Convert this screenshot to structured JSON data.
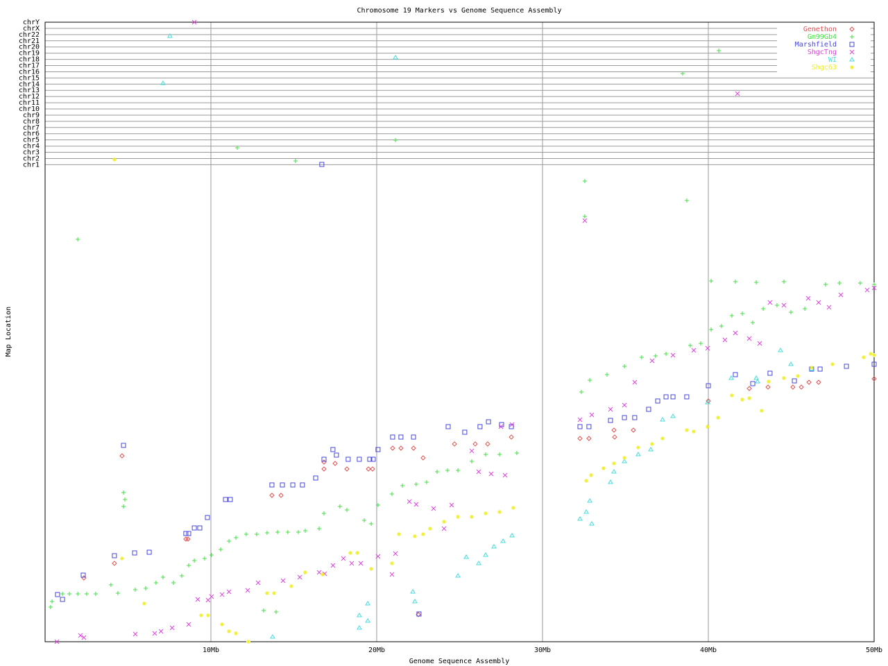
{
  "chart_data": {
    "type": "scatter",
    "title": "Chromosome 19 Markers vs Genome Sequence Assembly",
    "x_label": "Genome Sequence Assembly",
    "y_label": "Map Location",
    "xlim": [
      0,
      50
    ],
    "ylim": [
      0,
      100
    ],
    "xticks": [
      {
        "value": 10,
        "label": "10Mb"
      },
      {
        "value": 20,
        "label": "20Mb"
      },
      {
        "value": 30,
        "label": "30Mb"
      },
      {
        "value": 40,
        "label": "40Mb"
      },
      {
        "value": 50,
        "label": "50Mb"
      }
    ],
    "yticks": [
      {
        "value": 77,
        "label": "chr1"
      },
      {
        "value": 78,
        "label": "chr2"
      },
      {
        "value": 79,
        "label": "chr3"
      },
      {
        "value": 80,
        "label": "chr4"
      },
      {
        "value": 81,
        "label": "chr5"
      },
      {
        "value": 82,
        "label": "chr6"
      },
      {
        "value": 83,
        "label": "chr7"
      },
      {
        "value": 84,
        "label": "chr8"
      },
      {
        "value": 85,
        "label": "chr9"
      },
      {
        "value": 86,
        "label": "chr10"
      },
      {
        "value": 87,
        "label": "chr11"
      },
      {
        "value": 88,
        "label": "chr12"
      },
      {
        "value": 89,
        "label": "chr13"
      },
      {
        "value": 90,
        "label": "chr14"
      },
      {
        "value": 91,
        "label": "chr15"
      },
      {
        "value": 92,
        "label": "chr16"
      },
      {
        "value": 93,
        "label": "chr17"
      },
      {
        "value": 94,
        "label": "chr18"
      },
      {
        "value": 95,
        "label": "chr19"
      },
      {
        "value": 96,
        "label": "chr20"
      },
      {
        "value": 97,
        "label": "chr21"
      },
      {
        "value": 98,
        "label": "chr22"
      },
      {
        "value": 99,
        "label": "chrX"
      },
      {
        "value": 100,
        "label": "chrY"
      }
    ],
    "grid": true,
    "legend": "upper right",
    "series": [
      {
        "name": "Genethon",
        "color": "#e05050",
        "marker": "diamond",
        "x": [
          4.18,
          4.64,
          8.49,
          8.62,
          13.68,
          14.23,
          16.82,
          16.82,
          17.49,
          18.2,
          19.5,
          19.75,
          20.96,
          21.46,
          22.22,
          22.8,
          24.69,
          25.94,
          26.69,
          28.12,
          32.26,
          32.8,
          34.35,
          34.31,
          35.48,
          40.0,
          42.47,
          43.6,
          45.1,
          45.61,
          46.07,
          46.65,
          50.0,
          2.34,
          22.51
        ],
        "y": [
          12.65,
          30.0,
          16.57,
          16.57,
          23.63,
          23.63,
          27.88,
          29.0,
          28.78,
          27.88,
          27.88,
          27.88,
          31.24,
          31.24,
          31.24,
          29.68,
          31.92,
          31.92,
          31.92,
          33.04,
          32.81,
          32.81,
          33.04,
          34.15,
          34.15,
          38.86,
          40.87,
          41.1,
          41.1,
          41.1,
          41.88,
          41.88,
          42.44,
          10.3,
          4.37
        ]
      },
      {
        "name": "Gm99Gb4",
        "color": "#44dd44",
        "marker": "plus",
        "x": [
          0.33,
          0.42,
          1.05,
          1.46,
          1.97,
          2.51,
          3.05,
          1.97,
          3.97,
          4.39,
          4.73,
          4.73,
          4.81,
          5.44,
          6.07,
          6.69,
          7.11,
          7.74,
          8.24,
          8.66,
          9.0,
          9.62,
          10.04,
          10.59,
          11.09,
          11.51,
          12.13,
          12.76,
          13.39,
          14.02,
          14.64,
          15.27,
          15.69,
          16.53,
          16.82,
          17.78,
          18.2,
          19.25,
          19.67,
          20.08,
          20.92,
          21.55,
          22.38,
          23.01,
          23.64,
          24.27,
          24.9,
          25.73,
          26.57,
          27.41,
          28.45,
          11.59,
          15.1,
          21.13,
          32.34,
          32.85,
          33.89,
          34.94,
          35.98,
          36.82,
          37.45,
          38.91,
          39.54,
          40.17,
          40.79,
          41.42,
          42.05,
          42.68,
          43.31,
          44.14,
          44.98,
          45.82,
          47.07,
          47.91,
          49.16,
          50.0,
          40.17,
          41.63,
          42.89,
          44.56,
          32.55,
          32.55,
          38.7,
          38.45,
          40.63,
          13.18,
          13.93
        ],
        "y": [
          5.6,
          6.5,
          7.73,
          7.73,
          7.73,
          7.73,
          7.73,
          64.95,
          9.18,
          7.84,
          24.08,
          21.84,
          22.96,
          8.4,
          8.62,
          9.52,
          10.41,
          9.52,
          10.64,
          12.32,
          13.1,
          13.44,
          14.0,
          14.89,
          16.24,
          16.8,
          17.36,
          17.36,
          17.58,
          17.69,
          17.69,
          17.69,
          17.92,
          18.25,
          20.72,
          21.84,
          21.28,
          19.6,
          19.04,
          22.06,
          23.85,
          25.2,
          25.42,
          25.76,
          27.44,
          27.66,
          27.66,
          29.12,
          30.24,
          30.24,
          30.46,
          79.73,
          77.6,
          80.96,
          40.31,
          42.22,
          43.11,
          44.46,
          45.91,
          46.14,
          46.47,
          47.82,
          48.15,
          50.39,
          50.95,
          52.63,
          52.97,
          51.51,
          53.75,
          54.31,
          53.19,
          53.75,
          57.67,
          57.89,
          57.89,
          57.67,
          58.23,
          58.12,
          58.01,
          58.12,
          74.36,
          68.65,
          71.22,
          91.71,
          95.41,
          5.04,
          4.82
        ]
      },
      {
        "name": "Marshfield",
        "color": "#4444dd",
        "marker": "square",
        "x": [
          0.75,
          1.05,
          2.3,
          4.18,
          4.73,
          5.4,
          6.28,
          8.49,
          8.66,
          9.0,
          9.33,
          9.79,
          10.88,
          11.17,
          13.68,
          14.31,
          14.94,
          15.52,
          16.32,
          16.82,
          17.36,
          17.57,
          18.28,
          18.95,
          19.58,
          19.79,
          20.08,
          20.96,
          21.46,
          22.22,
          22.55,
          16.69,
          24.31,
          25.31,
          26.23,
          26.74,
          27.53,
          28.12,
          32.26,
          32.8,
          34.1,
          34.94,
          35.56,
          36.4,
          36.95,
          37.45,
          37.87,
          38.7,
          40.0,
          41.63,
          42.68,
          43.72,
          46.23,
          46.74,
          48.33,
          50.0,
          45.19
        ],
        "y": [
          7.61,
          6.83,
          10.75,
          13.89,
          31.69,
          14.33,
          14.45,
          17.47,
          17.47,
          18.37,
          18.37,
          20.04,
          22.96,
          22.96,
          25.31,
          25.31,
          25.31,
          25.31,
          26.43,
          29.45,
          31.02,
          30.12,
          29.45,
          29.45,
          29.45,
          29.45,
          31.02,
          33.03,
          33.03,
          33.03,
          4.48,
          77.04,
          34.71,
          33.82,
          34.71,
          35.5,
          35.05,
          34.71,
          34.71,
          34.71,
          35.72,
          36.17,
          36.17,
          37.51,
          38.86,
          39.53,
          39.53,
          39.53,
          41.32,
          43.11,
          41.66,
          43.34,
          44.01,
          44.01,
          44.46,
          44.79,
          42.11
        ]
      },
      {
        "name": "ShgcTng",
        "color": "#dd44dd",
        "marker": "cross",
        "x": [
          0.71,
          2.13,
          2.34,
          5.44,
          6.61,
          6.99,
          7.66,
          8.66,
          9.21,
          9.83,
          10.04,
          10.67,
          11.09,
          12.22,
          12.85,
          14.35,
          15.36,
          16.53,
          16.86,
          17.36,
          17.99,
          18.49,
          19.04,
          20.08,
          20.92,
          21.13,
          21.97,
          22.38,
          23.43,
          24.06,
          24.52,
          25.73,
          26.15,
          26.9,
          27.74,
          28.16,
          27.49,
          32.26,
          32.97,
          34.1,
          34.94,
          35.56,
          36.61,
          37.87,
          39.12,
          39.96,
          41.0,
          41.63,
          42.47,
          43.1,
          43.72,
          44.56,
          46.03,
          46.65,
          47.28,
          47.99,
          49.58,
          50.0,
          32.55,
          41.76,
          9.0
        ],
        "y": [
          0,
          1.01,
          0.67,
          1.23,
          1.34,
          1.68,
          2.24,
          2.8,
          6.83,
          6.72,
          7.28,
          7.61,
          8.06,
          8.29,
          9.52,
          9.85,
          10.41,
          11.2,
          10.97,
          12.32,
          13.44,
          12.65,
          12.65,
          13.77,
          10.86,
          14.22,
          22.62,
          22.17,
          21.5,
          18.25,
          22.06,
          30.8,
          27.44,
          27.1,
          26.88,
          35.05,
          34.71,
          35.83,
          36.62,
          37.51,
          38.19,
          41.88,
          45.35,
          46.25,
          47.03,
          47.37,
          48.71,
          49.83,
          48.94,
          48.15,
          54.76,
          54.31,
          55.43,
          54.76,
          53.98,
          55.99,
          56.77,
          57.11,
          67.97,
          88.47,
          100
        ]
      },
      {
        "name": "WI",
        "color": "#44dddd",
        "marker": "triangle",
        "x": [
          7.53,
          7.11,
          21.13,
          13.72,
          18.95,
          18.95,
          19.46,
          19.46,
          22.18,
          22.3,
          24.9,
          25.4,
          26.15,
          26.57,
          27.07,
          27.62,
          28.16,
          32.26,
          32.64,
          32.85,
          32.97,
          34.1,
          34.31,
          34.94,
          35.77,
          36.53,
          37.24,
          37.87,
          39.96,
          41.38,
          42.89,
          42.97,
          44.35,
          44.98,
          46.23
        ],
        "y": [
          97.76,
          90.15,
          94.29,
          0.78,
          4.26,
          2.24,
          6.16,
          3.36,
          8.06,
          6.5,
          10.64,
          13.66,
          12.65,
          14.0,
          15.34,
          16.24,
          17.13,
          19.82,
          20.94,
          22.73,
          19.04,
          25.76,
          27.44,
          29.12,
          30.24,
          31.02,
          35.83,
          36.39,
          38.63,
          42.55,
          42.55,
          41.99,
          47.03,
          44.79,
          44.01
        ]
      },
      {
        "name": "Shgc63",
        "color": "#eeee22",
        "marker": "star",
        "x": [
          4.18,
          4.64,
          5.98,
          9.41,
          9.83,
          10.67,
          11.09,
          11.51,
          12.26,
          13.39,
          13.81,
          14.85,
          15.69,
          16.74,
          18.41,
          18.83,
          19.67,
          20.92,
          21.34,
          22.3,
          22.8,
          23.22,
          24.06,
          24.9,
          25.73,
          26.57,
          27.41,
          28.24,
          32.64,
          32.93,
          33.68,
          34.31,
          34.94,
          35.77,
          36.61,
          37.24,
          38.7,
          39.12,
          39.96,
          40.59,
          41.42,
          42.05,
          42.47,
          43.22,
          43.64,
          44.56,
          45.4,
          46.23,
          47.49,
          49.37,
          49.79,
          50.0
        ],
        "y": [
          77.83,
          13.44,
          6.16,
          4.26,
          4.26,
          2.8,
          1.68,
          1.34,
          0,
          7.84,
          7.84,
          8.96,
          11.2,
          10.86,
          14.33,
          14.33,
          11.76,
          12.65,
          17.36,
          17.02,
          17.36,
          18.25,
          19.37,
          20.16,
          20.16,
          20.72,
          20.94,
          21.61,
          25.98,
          26.88,
          28.0,
          28.78,
          29.68,
          31.35,
          31.92,
          32.81,
          34.15,
          33.93,
          34.71,
          36.17,
          39.75,
          39.08,
          39.31,
          37.29,
          41.99,
          42.55,
          42.89,
          44.23,
          44.79,
          45.91,
          46.47,
          46.25
        ]
      }
    ]
  }
}
